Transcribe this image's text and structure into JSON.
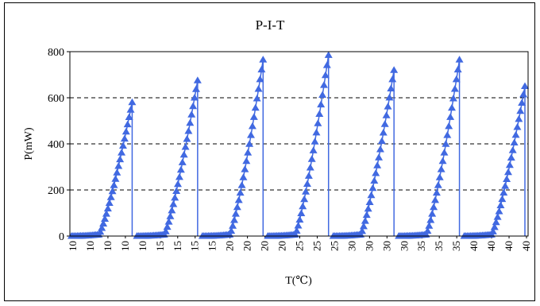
{
  "chart_data": {
    "type": "scatter",
    "title": "P-I-T",
    "xlabel": "T(℃)",
    "ylabel": "P(mW)",
    "ylim": [
      0,
      800
    ],
    "yticks": [
      0,
      200,
      400,
      600,
      800
    ],
    "xtick_labels": [
      "10",
      "10",
      "10",
      "10",
      "10",
      "15",
      "15",
      "15",
      "15",
      "20",
      "20",
      "20",
      "20",
      "25",
      "25",
      "25",
      "30",
      "30",
      "30",
      "30",
      "35",
      "35",
      "35",
      "40",
      "40",
      "40",
      "40"
    ],
    "grid": "horizontal dashed",
    "legend": "none",
    "series_color": "#4169E1",
    "segments": [
      {
        "label": "10",
        "max_p": 580
      },
      {
        "label": "15",
        "max_p": 675
      },
      {
        "label": "20",
        "max_p": 765
      },
      {
        "label": "25",
        "max_p": 785
      },
      {
        "label": "30",
        "max_p": 720
      },
      {
        "label": "35",
        "max_p": 765
      },
      {
        "label": "40",
        "max_p": 650
      }
    ]
  }
}
